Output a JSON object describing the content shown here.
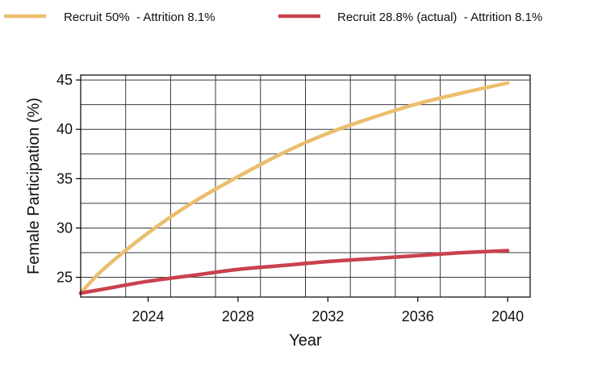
{
  "chart_data": {
    "type": "line",
    "title": "",
    "xlabel": "Year",
    "ylabel": "Female Participation (%)",
    "xlim": [
      2021,
      2041
    ],
    "ylim": [
      23,
      45.5
    ],
    "x_ticks": [
      2024,
      2028,
      2032,
      2036,
      2040
    ],
    "y_ticks": [
      25,
      30,
      35,
      40,
      45
    ],
    "grid": true,
    "legend_position": "top",
    "series": [
      {
        "name": "Recruit 50%  - Attrition 8.1%",
        "color": "#EBBE6E",
        "x": [
          2021,
          2022,
          2024,
          2026,
          2028,
          2030,
          2032,
          2034,
          2036,
          2038,
          2040
        ],
        "y": [
          23.4,
          25.8,
          29.5,
          32.6,
          35.2,
          37.6,
          39.6,
          41.2,
          42.6,
          43.7,
          44.7
        ]
      },
      {
        "name": "Recruit 28.8% (actual)  - Attrition 8.1%",
        "color": "#C9414D",
        "x": [
          2021,
          2022,
          2024,
          2026,
          2028,
          2030,
          2032,
          2034,
          2036,
          2038,
          2040
        ],
        "y": [
          23.4,
          23.8,
          24.6,
          25.2,
          25.8,
          26.2,
          26.6,
          26.9,
          27.2,
          27.5,
          27.7
        ]
      }
    ]
  }
}
